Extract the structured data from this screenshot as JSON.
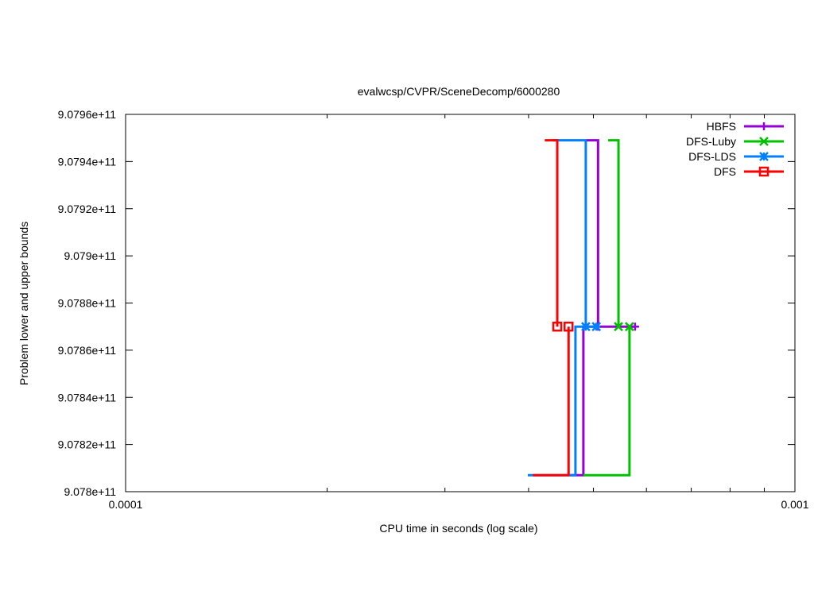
{
  "chart_data": {
    "type": "line",
    "title": "evalwcsp/CVPR/SceneDecomp/6000280",
    "xlabel": "CPU time in seconds (log scale)",
    "ylabel": "Problem lower and upper bounds",
    "xscale": "log",
    "xlim": [
      0.0001,
      0.001
    ],
    "ylim": [
      907800000000,
      907960000000
    ],
    "x_tick_labels": [
      "0.0001",
      "0.001"
    ],
    "y_ticks": [
      907800000000,
      907820000000,
      907840000000,
      907860000000,
      907880000000,
      907900000000,
      907920000000,
      907940000000,
      907960000000
    ],
    "y_tick_labels": [
      "9.078e+11",
      "9.0782e+11",
      "9.0784e+11",
      "9.0786e+11",
      "9.0788e+11",
      "9.079e+11",
      "9.0792e+11",
      "9.0794e+11",
      "9.0796e+11"
    ],
    "grid": false,
    "legend_position": "top-right",
    "series": [
      {
        "name": "HBFS",
        "color": "#9400d3",
        "marker": "plus",
        "upper": [
          [
            0.000487,
            907949000000
          ],
          [
            0.000508,
            907949000000
          ],
          [
            0.000508,
            907870000000
          ]
        ],
        "lower": [
          [
            0.000461,
            907807000000
          ],
          [
            0.000483,
            907807000000
          ],
          [
            0.000483,
            907870000000
          ],
          [
            0.000577,
            907870000000
          ]
        ]
      },
      {
        "name": "DFS-Luby",
        "color": "#00c000",
        "marker": "cross",
        "upper": [
          [
            0.000526,
            907949000000
          ],
          [
            0.000545,
            907949000000
          ],
          [
            0.000545,
            907870000000
          ]
        ],
        "lower": [
          [
            0.000483,
            907807000000
          ],
          [
            0.000566,
            907807000000
          ],
          [
            0.000566,
            907870000000
          ]
        ]
      },
      {
        "name": "DFS-LDS",
        "color": "#0080ff",
        "marker": "star",
        "upper": [
          [
            0.000434,
            907949000000
          ],
          [
            0.000487,
            907949000000
          ],
          [
            0.000487,
            907870000000
          ]
        ],
        "lower": [
          [
            0.000399,
            907807000000
          ],
          [
            0.00047,
            907807000000
          ],
          [
            0.00047,
            907870000000
          ],
          [
            0.000505,
            907870000000
          ]
        ]
      },
      {
        "name": "DFS",
        "color": "#ff0000",
        "marker": "square",
        "upper": [
          [
            0.000423,
            907949000000
          ],
          [
            0.0004415,
            907949000000
          ],
          [
            0.0004415,
            907870000000
          ]
        ],
        "lower": [
          [
            0.000406,
            907807000000
          ],
          [
            0.000459,
            907807000000
          ],
          [
            0.000459,
            907870000000
          ]
        ]
      }
    ]
  }
}
